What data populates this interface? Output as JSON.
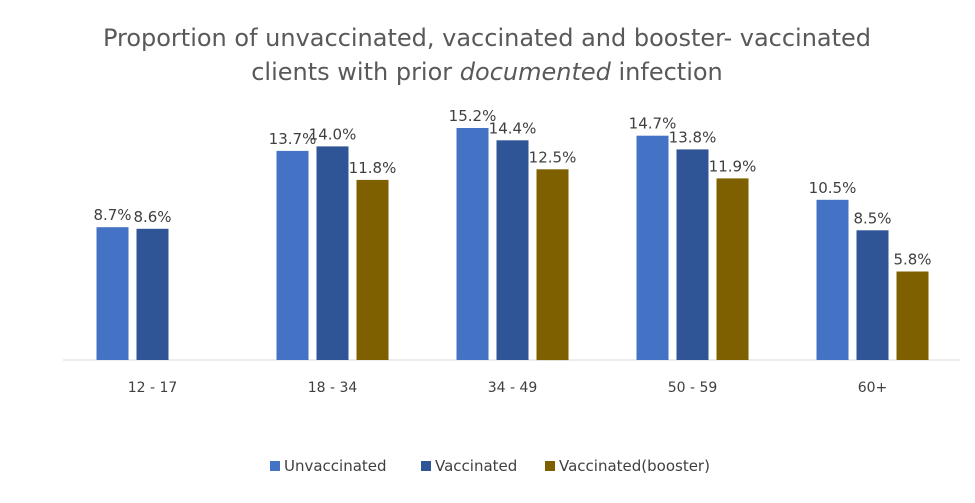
{
  "chart_data": {
    "type": "bar",
    "title_line1": "Proportion of unvaccinated, vaccinated and booster- vaccinated",
    "title_line2_pre": "clients with prior ",
    "title_line2_em": "documented",
    "title_line2_post": " infection",
    "categories": [
      "12 - 17",
      "18 - 34",
      "34 - 49",
      "50 - 59",
      "60+"
    ],
    "series": [
      {
        "name": "Unvaccinated",
        "color": "#4472C4",
        "values": [
          8.7,
          13.7,
          15.2,
          14.7,
          10.5
        ],
        "labels": [
          "8.7%",
          "13.7%",
          "15.2%",
          "14.7%",
          "10.5%"
        ]
      },
      {
        "name": "Vaccinated",
        "color": "#2F5597",
        "values": [
          8.6,
          14.0,
          14.4,
          13.8,
          8.5
        ],
        "labels": [
          "8.6%",
          "14.0%",
          "14.4%",
          "13.8%",
          "8.5%"
        ]
      },
      {
        "name": "Vaccinated(booster)",
        "color": "#7F6000",
        "values": [
          null,
          11.8,
          12.5,
          11.9,
          5.8
        ],
        "labels": [
          null,
          "11.8%",
          "12.5%",
          "11.9%",
          "5.8%"
        ]
      }
    ],
    "ylim": [
      0,
      16
    ],
    "grid": false,
    "legend_position": "bottom"
  }
}
